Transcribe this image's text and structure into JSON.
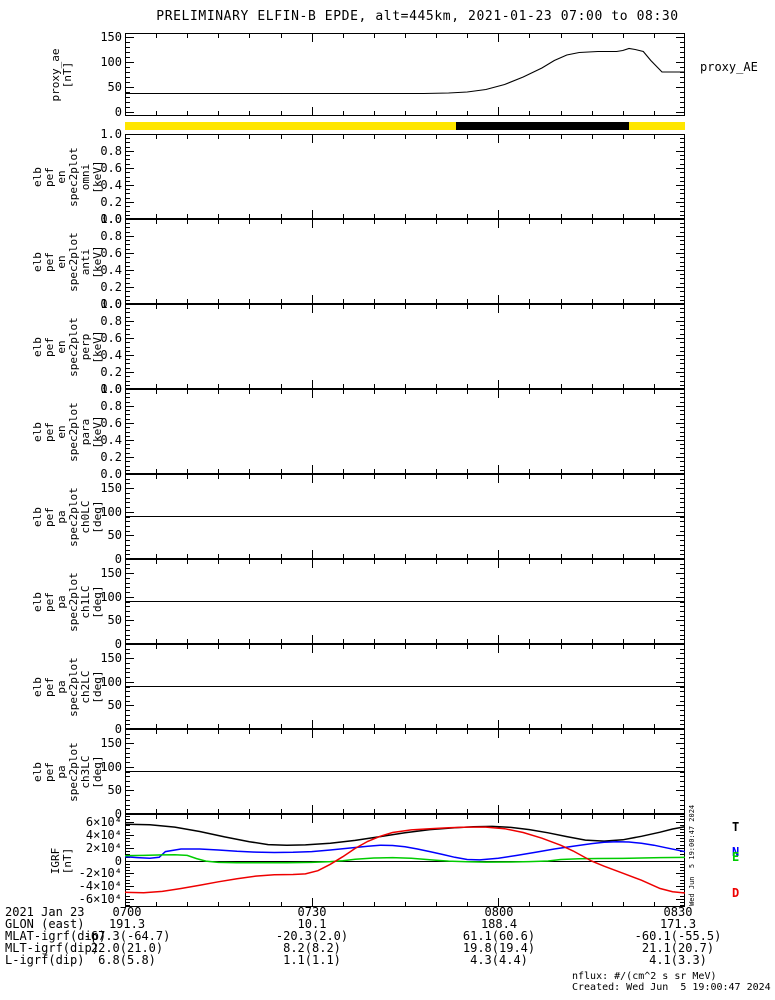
{
  "title": "PRELIMINARY ELFIN-B EPDE, alt=445km, 2021-01-23 07:00 to 08:30",
  "side_stamp": "Wed Jun  5 19:00:47 2024",
  "footer": {
    "nflux": "nflux: #/(cm^2 s sr MeV)",
    "created": "Created: Wed Jun  5 19:00:47 2024"
  },
  "bottom_table": {
    "row_labels": [
      "2021 Jan 23",
      "GLON (east)",
      "MLAT-igrf(dip)",
      "MLT-igrf(dip)",
      "L-igrf(dip)"
    ],
    "columns": [
      {
        "time": "0700",
        "glon": "191.3",
        "mlat": "-67.3(-64.7)",
        "mlt": "22.0(21.0)",
        "l": "6.8(5.8)"
      },
      {
        "time": "0730",
        "glon": "10.1",
        "mlat": "-20.3(2.0)",
        "mlt": "8.2(8.2)",
        "l": "1.1(1.1)"
      },
      {
        "time": "0800",
        "glon": "188.4",
        "mlat": "61.1(60.6)",
        "mlt": "19.8(19.4)",
        "l": "4.3(4.4)"
      },
      {
        "time": "0830",
        "glon": "171.3",
        "mlat": "-60.1(-55.5)",
        "mlt": "21.1(20.7)",
        "l": "4.1(3.3)"
      }
    ]
  },
  "x_axis": {
    "start": "2021-01-23 07:00",
    "end": "2021-01-23 08:30",
    "range_minutes": [
      0,
      90
    ],
    "major_ticks_minutes": [
      0,
      30,
      60,
      90
    ],
    "minor_step_minutes": 5,
    "tick_labels": [
      "0700",
      "0730",
      "0800",
      "0830"
    ]
  },
  "chart_data": [
    {
      "id": "proxy_ae",
      "type": "line",
      "ylabel_lines": [
        "proxy_ae",
        "[nT]"
      ],
      "right_label": "proxy_AE",
      "yrange": [
        -8,
        158
      ],
      "ymajor": [
        0,
        50,
        100,
        150
      ],
      "ytick_labels": [
        "0",
        "50",
        "100",
        "150"
      ],
      "yminor_step": 10,
      "series": [
        {
          "name": "proxy_AE",
          "color": "#000000",
          "x": [
            0,
            15,
            30,
            40,
            48,
            52,
            55,
            58,
            61,
            64,
            67,
            69,
            71,
            73,
            76,
            79,
            80,
            81,
            82,
            83.3,
            84.5,
            86.3,
            90
          ],
          "y": [
            37,
            37,
            37,
            37,
            37,
            38,
            40,
            45,
            55,
            70,
            88,
            103,
            114,
            119,
            121,
            121,
            123,
            127,
            125,
            121,
            103,
            80,
            80
          ]
        }
      ]
    },
    {
      "id": "orbit_bar",
      "type": "segment-bar",
      "segments": [
        {
          "from": 0,
          "to": 53.2,
          "color": "#ffe600"
        },
        {
          "from": 53.2,
          "to": 81.0,
          "color": "#000000"
        },
        {
          "from": 81.0,
          "to": 90,
          "color": "#ffe600"
        }
      ]
    },
    {
      "id": "en_omni",
      "type": "spectrogram",
      "ylabel_lines": [
        "elb",
        "pef",
        "en",
        "spec2plot",
        "omni",
        "[keV]"
      ],
      "yrange": [
        0,
        1
      ],
      "ymajor": [
        0,
        0.2,
        0.4,
        0.6,
        0.8,
        1
      ],
      "ytick_labels": [
        "0.0",
        "0.2",
        "0.4",
        "0.6",
        "0.8",
        "1.0"
      ],
      "yminor_step": 0.05,
      "series": []
    },
    {
      "id": "en_anti",
      "type": "spectrogram",
      "ylabel_lines": [
        "elb",
        "pef",
        "en",
        "spec2plot",
        "anti",
        "[keV]"
      ],
      "yrange": [
        0,
        1
      ],
      "ymajor": [
        0,
        0.2,
        0.4,
        0.6,
        0.8,
        1
      ],
      "ytick_labels": [
        "0.0",
        "0.2",
        "0.4",
        "0.6",
        "0.8",
        "1.0"
      ],
      "yminor_step": 0.05,
      "series": []
    },
    {
      "id": "en_perp",
      "type": "spectrogram",
      "ylabel_lines": [
        "elb",
        "pef",
        "en",
        "spec2plot",
        "perp",
        "[keV]"
      ],
      "yrange": [
        0,
        1
      ],
      "ymajor": [
        0,
        0.2,
        0.4,
        0.6,
        0.8,
        1
      ],
      "ytick_labels": [
        "0.0",
        "0.2",
        "0.4",
        "0.6",
        "0.8",
        "1.0"
      ],
      "yminor_step": 0.05,
      "series": []
    },
    {
      "id": "en_para",
      "type": "spectrogram",
      "ylabel_lines": [
        "elb",
        "pef",
        "en",
        "spec2plot",
        "para",
        "[keV]"
      ],
      "yrange": [
        0,
        1
      ],
      "ymajor": [
        0,
        0.2,
        0.4,
        0.6,
        0.8,
        1
      ],
      "ytick_labels": [
        "0.0",
        "0.2",
        "0.4",
        "0.6",
        "0.8",
        "1.0"
      ],
      "yminor_step": 0.05,
      "series": []
    },
    {
      "id": "pa_ch0lc",
      "type": "spectrogram",
      "ylabel_lines": [
        "elb",
        "pef",
        "pa",
        "spec2plot",
        "ch0LC",
        "[deg]"
      ],
      "yrange": [
        0,
        180
      ],
      "ymajor": [
        0,
        50,
        100,
        150
      ],
      "ytick_labels": [
        "0",
        "50",
        "100",
        "150"
      ],
      "yminor_step": 10,
      "series": [
        {
          "name": "90deg-line",
          "color": "#000000",
          "x": [
            0,
            90
          ],
          "y": [
            90,
            90
          ]
        }
      ]
    },
    {
      "id": "pa_ch1lc",
      "type": "spectrogram",
      "ylabel_lines": [
        "elb",
        "pef",
        "pa",
        "spec2plot",
        "ch1LC",
        "[deg]"
      ],
      "yrange": [
        0,
        180
      ],
      "ymajor": [
        0,
        50,
        100,
        150
      ],
      "ytick_labels": [
        "0",
        "50",
        "100",
        "150"
      ],
      "yminor_step": 10,
      "series": [
        {
          "name": "90deg-line",
          "color": "#000000",
          "x": [
            0,
            90
          ],
          "y": [
            90,
            90
          ]
        }
      ]
    },
    {
      "id": "pa_ch2lc",
      "type": "spectrogram",
      "ylabel_lines": [
        "elb",
        "pef",
        "pa",
        "spec2plot",
        "ch2LC",
        "[deg]"
      ],
      "yrange": [
        0,
        180
      ],
      "ymajor": [
        0,
        50,
        100,
        150
      ],
      "ytick_labels": [
        "0",
        "50",
        "100",
        "150"
      ],
      "yminor_step": 10,
      "series": [
        {
          "name": "90deg-line",
          "color": "#000000",
          "x": [
            0,
            90
          ],
          "y": [
            90,
            90
          ]
        }
      ]
    },
    {
      "id": "pa_ch3lc",
      "type": "spectrogram",
      "ylabel_lines": [
        "elb",
        "pef",
        "pa",
        "spec2plot",
        "ch3LC",
        "[deg]"
      ],
      "yrange": [
        0,
        180
      ],
      "ymajor": [
        0,
        50,
        100,
        150
      ],
      "ytick_labels": [
        "0",
        "50",
        "100",
        "150"
      ],
      "yminor_step": 10,
      "series": [
        {
          "name": "90deg-line",
          "color": "#000000",
          "x": [
            0,
            90
          ],
          "y": [
            90,
            90
          ]
        }
      ]
    },
    {
      "id": "igrf",
      "type": "line",
      "ylabel_lines": [
        "IGRF",
        "[nT]"
      ],
      "yrange": [
        -73000,
        73000
      ],
      "ymajor": [
        -60000,
        -40000,
        -20000,
        0,
        20000,
        40000,
        60000
      ],
      "ytick_labels": [
        "-6×10⁴",
        "-4×10⁴",
        "-2×10⁴",
        "0",
        "2×10⁴",
        "4×10⁴",
        "6×10⁴"
      ],
      "yminor_step": 5000,
      "zero_line": true,
      "legend": [
        "T",
        "N",
        "E",
        "D"
      ],
      "series": [
        {
          "name": "T",
          "color": "#000000",
          "x": [
            0,
            4,
            8,
            12,
            16,
            20,
            23,
            26,
            29,
            33,
            37,
            41,
            45,
            49,
            53,
            56,
            59,
            62,
            65,
            68,
            71,
            74,
            77,
            80,
            83,
            86,
            88,
            90
          ],
          "y": [
            57000,
            56000,
            52500,
            45500,
            37000,
            29500,
            25000,
            24000,
            24500,
            27000,
            31500,
            37500,
            43500,
            48500,
            51500,
            53000,
            53500,
            52000,
            48500,
            43500,
            37500,
            32000,
            30500,
            32500,
            38000,
            44500,
            49500,
            53000
          ]
        },
        {
          "name": "N",
          "color": "#0000ff",
          "x": [
            0,
            2,
            4,
            5.5,
            6.5,
            9,
            12,
            15,
            18,
            21,
            24,
            27,
            30,
            33,
            36,
            39,
            41,
            43,
            45,
            47,
            49,
            51,
            53,
            55,
            57,
            60,
            63,
            66,
            69,
            72,
            75,
            77,
            79,
            81,
            83,
            85,
            87,
            90
          ],
          "y": [
            6000,
            4500,
            3500,
            5000,
            14000,
            18000,
            18000,
            16500,
            14500,
            13200,
            12600,
            12800,
            14000,
            16500,
            19500,
            22500,
            24000,
            23500,
            21500,
            18000,
            14000,
            9500,
            5000,
            1500,
            1000,
            3500,
            8000,
            13000,
            18000,
            22500,
            26500,
            28500,
            29500,
            29000,
            27000,
            24000,
            20000,
            14000
          ]
        },
        {
          "name": "E",
          "color": "#00cc00",
          "x": [
            0,
            3,
            6,
            8,
            10,
            11.5,
            13,
            15,
            18,
            22,
            26,
            30,
            33,
            35,
            37,
            40,
            43,
            46,
            48,
            50,
            52,
            55,
            58,
            62,
            65,
            68,
            70,
            73,
            76,
            80,
            83,
            86,
            90
          ],
          "y": [
            7500,
            8000,
            8800,
            9000,
            8000,
            3000,
            -1000,
            -3000,
            -3500,
            -3600,
            -3500,
            -3000,
            -1800,
            -300,
            2000,
            4000,
            4500,
            3500,
            2000,
            500,
            -1000,
            -2000,
            -2500,
            -2400,
            -1800,
            -800,
            1500,
            2800,
            3200,
            3300,
            4000,
            4500,
            4800
          ]
        },
        {
          "name": "D",
          "color": "#ee0000",
          "x": [
            0,
            3,
            6,
            9,
            12,
            15,
            18,
            21,
            24,
            27,
            29,
            31,
            33,
            35,
            37,
            39,
            41,
            43,
            46,
            49,
            52,
            55,
            58,
            61,
            64,
            67,
            70,
            72,
            75,
            77,
            80,
            83,
            86,
            88,
            90
          ],
          "y": [
            -50000,
            -50500,
            -48500,
            -44000,
            -39000,
            -33500,
            -28500,
            -24500,
            -22500,
            -22000,
            -21000,
            -16000,
            -6000,
            6000,
            19000,
            30000,
            38000,
            44000,
            48000,
            50000,
            51500,
            52500,
            52500,
            50000,
            44000,
            35000,
            24000,
            15000,
            -1000,
            -9000,
            -20000,
            -31000,
            -44000,
            -49000,
            -51000
          ]
        }
      ]
    }
  ]
}
